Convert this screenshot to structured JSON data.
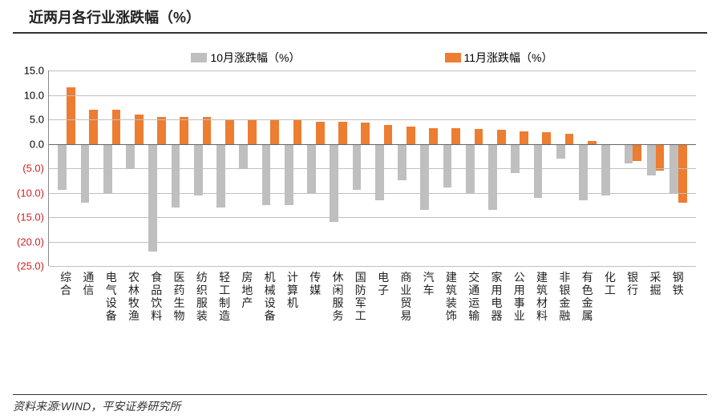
{
  "title": "近两月各行业涨跌幅（%）",
  "source": "资料来源:WIND，平安证券研究所",
  "chart": {
    "type": "bar",
    "legend": {
      "oct": {
        "label": "10月涨跌幅（%）",
        "color": "#bfbfbf"
      },
      "nov": {
        "label": "11月涨跌幅（%）",
        "color": "#ed7d31"
      }
    },
    "ylim": [
      -25,
      15
    ],
    "ytick_step": 5,
    "yticks": [
      15,
      10,
      5,
      0,
      -5,
      -10,
      -15,
      -20,
      -25
    ],
    "ytick_labels": [
      "15.0",
      "10.0",
      "5.0",
      "0.0",
      "(5.0)",
      "(10.0)",
      "(15.0)",
      "(20.0)",
      "(25.0)"
    ],
    "grid_color": "#c0c0c0",
    "axis_color": "#888888",
    "background_color": "#ffffff",
    "neg_label_color": "#d02020",
    "categories": [
      "综合",
      "通信",
      "电气设备",
      "农林牧渔",
      "食品饮料",
      "医药生物",
      "纺织服装",
      "轻工制造",
      "房地产",
      "机械设备",
      "计算机",
      "传媒",
      "休闲服务",
      "国防军工",
      "电子",
      "商业贸易",
      "汽车",
      "建筑装饰",
      "交通运输",
      "家用电器",
      "公用事业",
      "建筑材料",
      "非银金融",
      "有色金属",
      "化工",
      "银行",
      "采掘",
      "钢铁"
    ],
    "series": {
      "oct": [
        -9.5,
        -12.0,
        -10.0,
        -5.0,
        -22.0,
        -13.0,
        -10.5,
        -13.0,
        -5.0,
        -12.5,
        -12.5,
        -10.0,
        -16.0,
        -9.5,
        -11.5,
        -7.5,
        -13.5,
        -9.0,
        -10.0,
        -13.5,
        -6.0,
        -11.0,
        -3.0,
        -11.5,
        -10.5,
        -4.0,
        -6.5,
        -10.0
      ],
      "nov": [
        11.5,
        7.0,
        7.0,
        6.0,
        5.5,
        5.5,
        5.5,
        5.0,
        5.0,
        5.0,
        4.8,
        4.5,
        4.5,
        4.3,
        3.8,
        3.5,
        3.2,
        3.2,
        3.0,
        2.8,
        2.5,
        2.3,
        2.0,
        0.5,
        -0.3,
        -3.5,
        -5.5,
        -12.0
      ]
    }
  }
}
